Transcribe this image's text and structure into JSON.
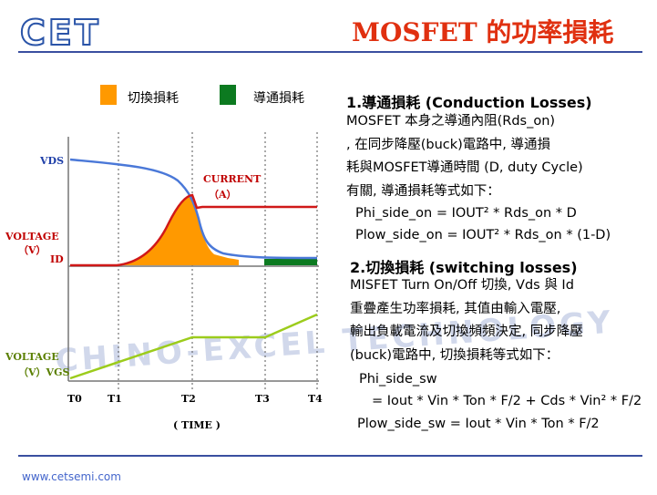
{
  "header": {
    "logo": "CET",
    "title": "MOSFET 的功率損耗"
  },
  "legend": {
    "switching": {
      "label": "切換損耗",
      "color": "#ff9900"
    },
    "conduction": {
      "label": "導通損耗",
      "color": "#0c7a20"
    }
  },
  "diagram": {
    "labels": {
      "vds": "VDS",
      "current": "CURRENT",
      "current_unit": "（A）",
      "voltage1": "VOLTAGE",
      "voltage1_unit": "（V）",
      "id": "ID",
      "voltage2": "VOLTAGE",
      "voltage2_unit": "（V）VGS",
      "time": "( TIME )"
    },
    "ticks": [
      "T0",
      "T1",
      "T2",
      "T3",
      "T4"
    ],
    "colors": {
      "vds": "#4a78d8",
      "id": "#d01818",
      "vgs": "#9ccc1c"
    }
  },
  "text": {
    "section1": {
      "title": "1.導通損耗 (Conduction Losses)",
      "lines": [
        "MOSFET 本身之導通內阻(Rds_on)",
        ", 在同步降壓(buck)電路中, 導通損",
        "耗與MOSFET導通時間 (D, duty Cycle)",
        "有關, 導通損耗等式如下："
      ],
      "eq1": "Phi_side_on = IOUT² * Rds_on * D",
      "eq2": "Plow_side_on = IOUT² * Rds_on * (1-D)"
    },
    "section2": {
      "title": "2.切換損耗 (switching losses)",
      "lines": [
        "MISFET Turn On/Off 切換, Vds 與 Id",
        "重疊產生功率損耗, 其值由輸入電壓,",
        "輸出負載電流及切換頻頻決定, 同步降壓",
        "(buck)電路中, 切換損耗等式如下："
      ],
      "eq1a": "Phi_side_sw",
      "eq1b": "= Iout * Vin * Ton * F/2 + Cds * Vin² * F/2",
      "eq2": "Plow_side_sw = Iout * Vin * Ton * F/2"
    }
  },
  "watermark": "CHINO-EXCEL TECHNOLOGY",
  "footer": {
    "url": "www.cetsemi.com"
  }
}
